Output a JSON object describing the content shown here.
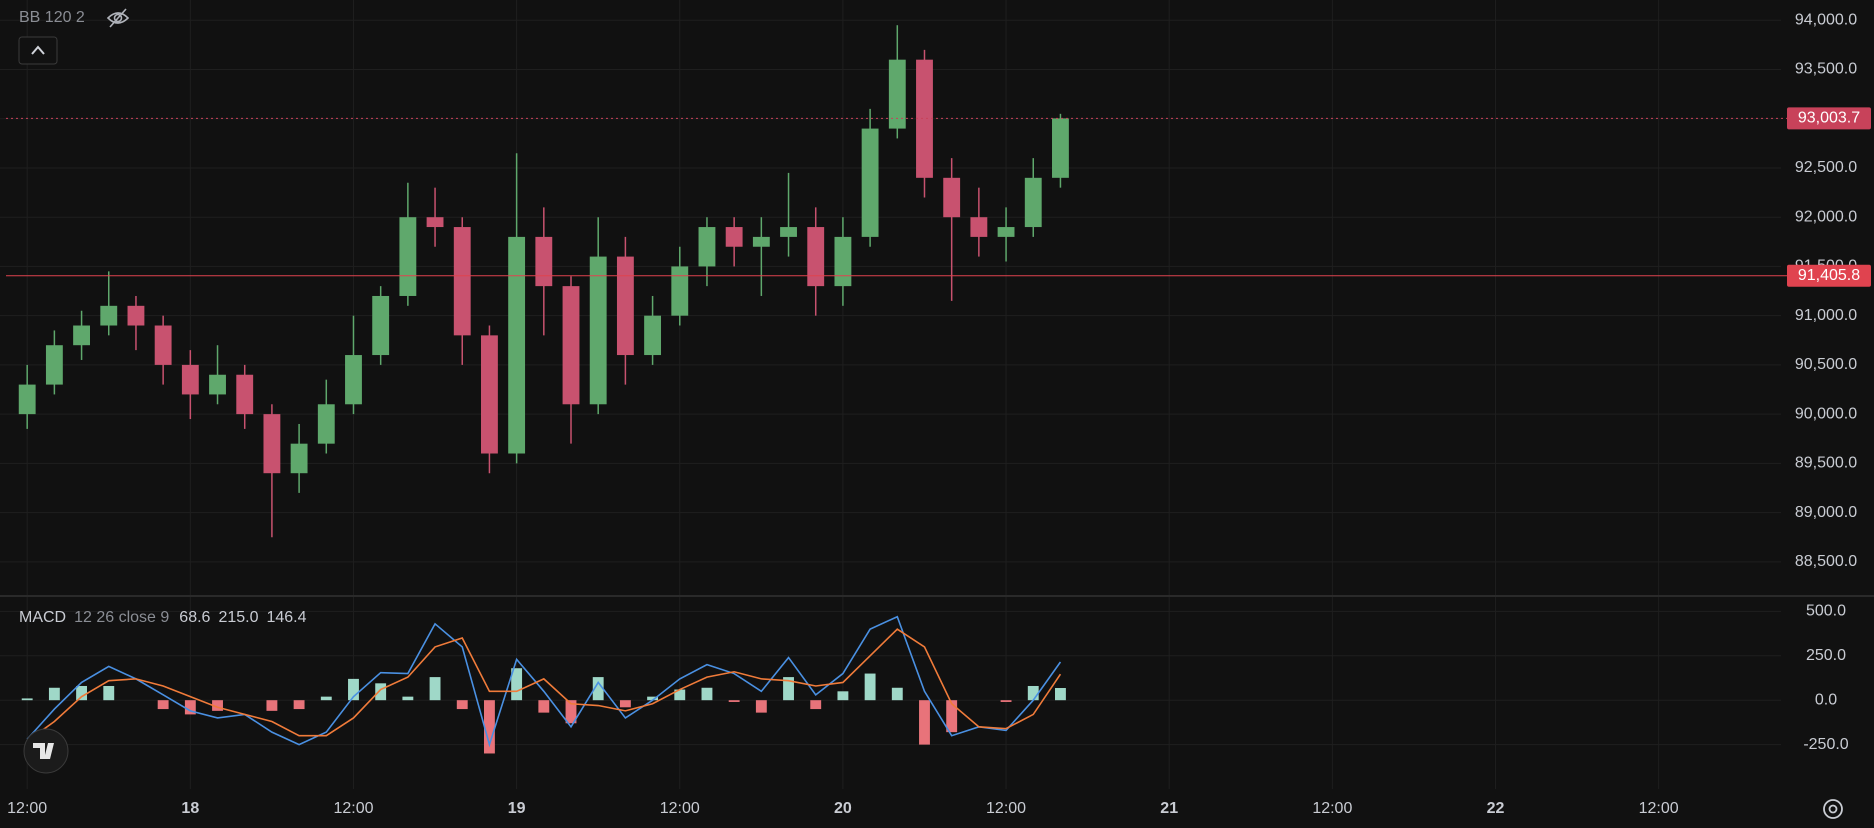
{
  "chart_data": [
    {
      "type": "candlestick",
      "indicator_label": "BB 120 2",
      "x": [
        0,
        2,
        4,
        6,
        8,
        10,
        12,
        14,
        16,
        18,
        20,
        22,
        24,
        26,
        28,
        30,
        32,
        34,
        36,
        38,
        40,
        42,
        44,
        46,
        48,
        50,
        52,
        54,
        56,
        58,
        60,
        62,
        64,
        66,
        68,
        70,
        72,
        74,
        76
      ],
      "open": [
        90000,
        90300,
        90700,
        90900,
        91100,
        90900,
        90500,
        90200,
        90400,
        90000,
        89400,
        89700,
        90100,
        90600,
        91200,
        92000,
        91900,
        90800,
        89600,
        91800,
        91300,
        90100,
        91600,
        90600,
        91000,
        91500,
        91900,
        91700,
        91800,
        91900,
        91300,
        91800,
        92900,
        93600,
        92400,
        92000,
        91800,
        91900,
        92400
      ],
      "high": [
        90500,
        90850,
        91050,
        91450,
        91200,
        91000,
        90650,
        90700,
        90500,
        90100,
        89900,
        90350,
        91000,
        91300,
        92350,
        92300,
        92000,
        90900,
        92650,
        92100,
        91400,
        92000,
        91800,
        91200,
        91700,
        92000,
        92000,
        92000,
        92450,
        92100,
        92000,
        93100,
        93950,
        93700,
        92600,
        92300,
        92100,
        92600,
        93050
      ],
      "low": [
        89850,
        90200,
        90550,
        90800,
        90650,
        90300,
        89950,
        90100,
        89850,
        88750,
        89200,
        89600,
        90000,
        90500,
        91100,
        91700,
        90500,
        89400,
        89500,
        90800,
        89700,
        90000,
        90300,
        90500,
        90900,
        91300,
        91500,
        91200,
        91600,
        91000,
        91100,
        91700,
        92800,
        92200,
        91150,
        91600,
        91550,
        91800,
        92300
      ],
      "close": [
        90300,
        90700,
        90900,
        91100,
        90900,
        90500,
        90200,
        90400,
        90000,
        89400,
        89700,
        90100,
        90600,
        91200,
        92000,
        91900,
        90800,
        89600,
        91800,
        91300,
        90100,
        91600,
        90600,
        91000,
        91500,
        91900,
        91700,
        91800,
        91900,
        91300,
        91800,
        92900,
        93600,
        92400,
        92000,
        91800,
        91900,
        92400,
        93003.7
      ],
      "up_color": "#5fa86c",
      "down_color": "#c8526f",
      "xlim": [
        -2,
        129
      ],
      "ylim": [
        88163,
        94206
      ],
      "yticks": [
        {
          "value": 88500,
          "label": "88,500.0"
        },
        {
          "value": 89000,
          "label": "89,000.0"
        },
        {
          "value": 89500,
          "label": "89,500.0"
        },
        {
          "value": 90000,
          "label": "90,000.0"
        },
        {
          "value": 90500,
          "label": "90,500.0"
        },
        {
          "value": 91000,
          "label": "91,000.0"
        },
        {
          "value": 91500,
          "label": "91,500.0"
        },
        {
          "value": 92000,
          "label": "92,000.0"
        },
        {
          "value": 92500,
          "label": "92,500.0"
        },
        {
          "value": 93000,
          "label": "93,000.0"
        },
        {
          "value": 93500,
          "label": "93,500.0"
        },
        {
          "value": 94000,
          "label": "94,000.0"
        }
      ],
      "grid": true,
      "price_lines": [
        {
          "value": 93003.7,
          "label": "93,003.7",
          "style": "dotted",
          "color": "#c8425a"
        },
        {
          "value": 91405.8,
          "label": "91,405.8",
          "style": "solid",
          "color": "#e0434f"
        }
      ]
    },
    {
      "type": "macd",
      "title": "MACD",
      "params": "12 26 close 9",
      "legend_values": [
        "68.6",
        "215.0",
        "146.4"
      ],
      "x": [
        0,
        2,
        4,
        6,
        8,
        10,
        12,
        14,
        16,
        18,
        20,
        22,
        24,
        26,
        28,
        30,
        32,
        34,
        36,
        38,
        40,
        42,
        44,
        46,
        48,
        50,
        52,
        54,
        56,
        58,
        60,
        62,
        64,
        66,
        68,
        70,
        72,
        74,
        76
      ],
      "series": [
        {
          "name": "Histogram",
          "color": "#9fd8c8",
          "negative_color": "#e8737a",
          "values": [
            10,
            70,
            80,
            80,
            0,
            -50,
            -80,
            -60,
            0,
            -60,
            -50,
            20,
            120,
            95,
            20,
            130,
            -50,
            -300,
            180,
            -70,
            -130,
            130,
            -40,
            20,
            60,
            70,
            -10,
            -70,
            130,
            -50,
            50,
            150,
            70,
            -250,
            -180,
            0,
            -10,
            80,
            68.6
          ]
        },
        {
          "name": "MACD",
          "color": "#4a90e2",
          "values": [
            -220,
            -50,
            100,
            190,
            120,
            30,
            -60,
            -100,
            -80,
            -180,
            -250,
            -180,
            20,
            155,
            150,
            430,
            300,
            -250,
            230,
            50,
            -150,
            100,
            -100,
            0,
            120,
            200,
            150,
            50,
            240,
            30,
            150,
            400,
            470,
            50,
            -200,
            -150,
            -170,
            0,
            215
          ]
        },
        {
          "name": "Signal",
          "color": "#f07b3a",
          "values": [
            -230,
            -120,
            20,
            110,
            120,
            80,
            20,
            -40,
            -80,
            -120,
            -200,
            -200,
            -100,
            60,
            130,
            300,
            350,
            50,
            50,
            120,
            -20,
            -30,
            -60,
            -20,
            60,
            130,
            160,
            120,
            110,
            80,
            100,
            250,
            400,
            300,
            -20,
            -150,
            -160,
            -80,
            146.4
          ]
        }
      ],
      "xlim": [
        -2,
        129
      ],
      "ylim": [
        -500,
        581
      ],
      "yticks": [
        {
          "value": -250,
          "label": "-250.0"
        },
        {
          "value": 0,
          "label": "0.0"
        },
        {
          "value": 250,
          "label": "250.0"
        },
        {
          "value": 500,
          "label": "500.0"
        }
      ],
      "xticks": [
        {
          "value": 0,
          "label": "12:00"
        },
        {
          "value": 12,
          "label": "18"
        },
        {
          "value": 24,
          "label": "12:00"
        },
        {
          "value": 36,
          "label": "19"
        },
        {
          "value": 48,
          "label": "12:00"
        },
        {
          "value": 60,
          "label": "20"
        },
        {
          "value": 72,
          "label": "12:00"
        },
        {
          "value": 84,
          "label": "21"
        },
        {
          "value": 96,
          "label": "12:00"
        },
        {
          "value": 108,
          "label": "22"
        },
        {
          "value": 120,
          "label": "12:00"
        }
      ],
      "grid": true
    }
  ]
}
